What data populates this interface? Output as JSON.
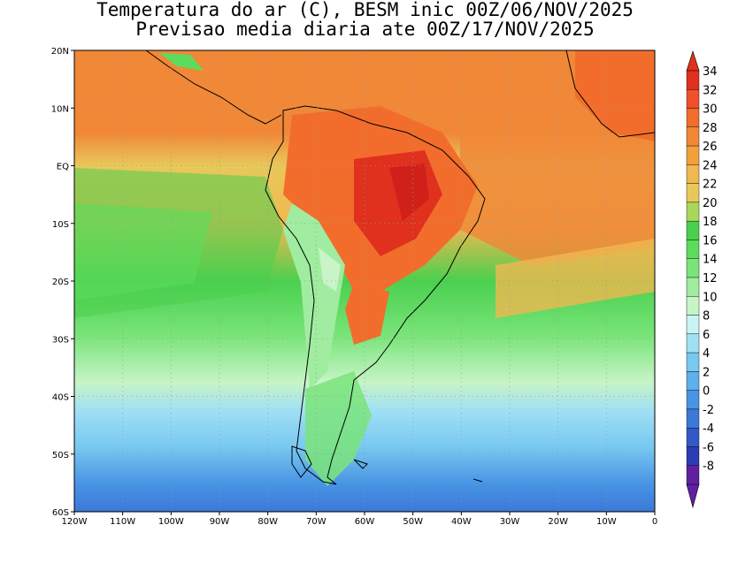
{
  "title": {
    "line1": "Temperatura do ar (C), BESM inic 00Z/06/NOV/2025",
    "line2": "Previsao media diaria ate 00Z/17/NOV/2025"
  },
  "map": {
    "lon_range": [
      -120,
      0
    ],
    "lat_range": [
      -60,
      20
    ],
    "x_ticks": [
      "120W",
      "110W",
      "100W",
      "90W",
      "80W",
      "70W",
      "60W",
      "50W",
      "40W",
      "30W",
      "20W",
      "10W",
      "0"
    ],
    "y_ticks": [
      "20N",
      "10N",
      "EQ",
      "10S",
      "20S",
      "30S",
      "40S",
      "50S",
      "60S"
    ],
    "gridlines": "dotted"
  },
  "colorbar": {
    "labels": [
      "34",
      "32",
      "30",
      "28",
      "26",
      "24",
      "22",
      "20",
      "18",
      "16",
      "14",
      "12",
      "10",
      "8",
      "6",
      "4",
      "2",
      "0",
      "-2",
      "-4",
      "-6",
      "-8"
    ],
    "colors": [
      "#e0301e",
      "#f0502a",
      "#f26d2b",
      "#f08838",
      "#f2a03c",
      "#f0b850",
      "#e8c85a",
      "#a8d85a",
      "#4ad04e",
      "#5cdc5c",
      "#7ae47a",
      "#a0eca0",
      "#c8f4c8",
      "#c8f4f4",
      "#a0e0f4",
      "#78c8f0",
      "#5cb0ec",
      "#4894e4",
      "#3c78d8",
      "#3458c8",
      "#2c3cb4",
      "#6020a0"
    ]
  }
}
